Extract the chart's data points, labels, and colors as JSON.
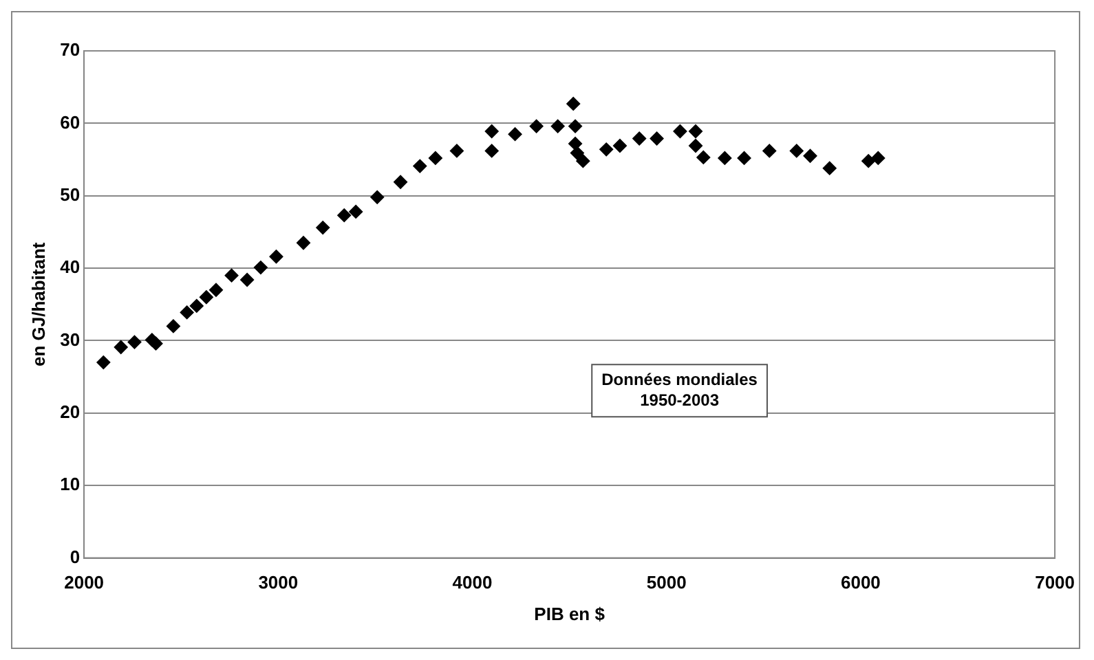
{
  "chart_data": {
    "type": "scatter",
    "xlabel": "PIB en $",
    "ylabel": "en GJ/habitant",
    "x": [
      2100,
      2190,
      2260,
      2350,
      2370,
      2460,
      2530,
      2580,
      2630,
      2680,
      2760,
      2840,
      2910,
      2990,
      3130,
      3230,
      3340,
      3400,
      3510,
      3630,
      3730,
      3810,
      3920,
      4100,
      4100,
      4220,
      4330,
      4440,
      4520,
      4530,
      4530,
      4540,
      4570,
      4690,
      4760,
      4860,
      4950,
      5070,
      5150,
      5150,
      5190,
      5300,
      5400,
      5530,
      5670,
      5740,
      5840,
      6040,
      6090
    ],
    "series": [
      {
        "color": "#000000",
        "values": [
          27,
          29.1,
          29.8,
          30.1,
          29.6,
          32,
          33.9,
          34.8,
          36,
          37,
          39,
          38.4,
          40.1,
          41.6,
          43.5,
          45.6,
          47.3,
          47.8,
          49.8,
          51.9,
          54.1,
          55.2,
          56.2,
          58.9,
          56.2,
          58.5,
          59.6,
          59.6,
          62.7,
          59.6,
          57.2,
          55.9,
          54.8,
          56.4,
          56.9,
          57.9,
          57.9,
          58.9,
          58.9,
          56.9,
          55.3,
          55.2,
          55.2,
          56.2,
          56.2,
          55.5,
          53.8,
          54.8,
          55.2
        ]
      }
    ],
    "xlim": [
      2000,
      7000
    ],
    "xticks": [
      2000,
      3000,
      4000,
      5000,
      6000,
      7000
    ],
    "ylim": [
      0,
      70
    ],
    "yticks": [
      0,
      10,
      20,
      30,
      40,
      50,
      60,
      70
    ],
    "grid": "y",
    "legend": false,
    "marker": "diamond",
    "annotations": [
      "Données mondiales\n1950-2003"
    ]
  }
}
